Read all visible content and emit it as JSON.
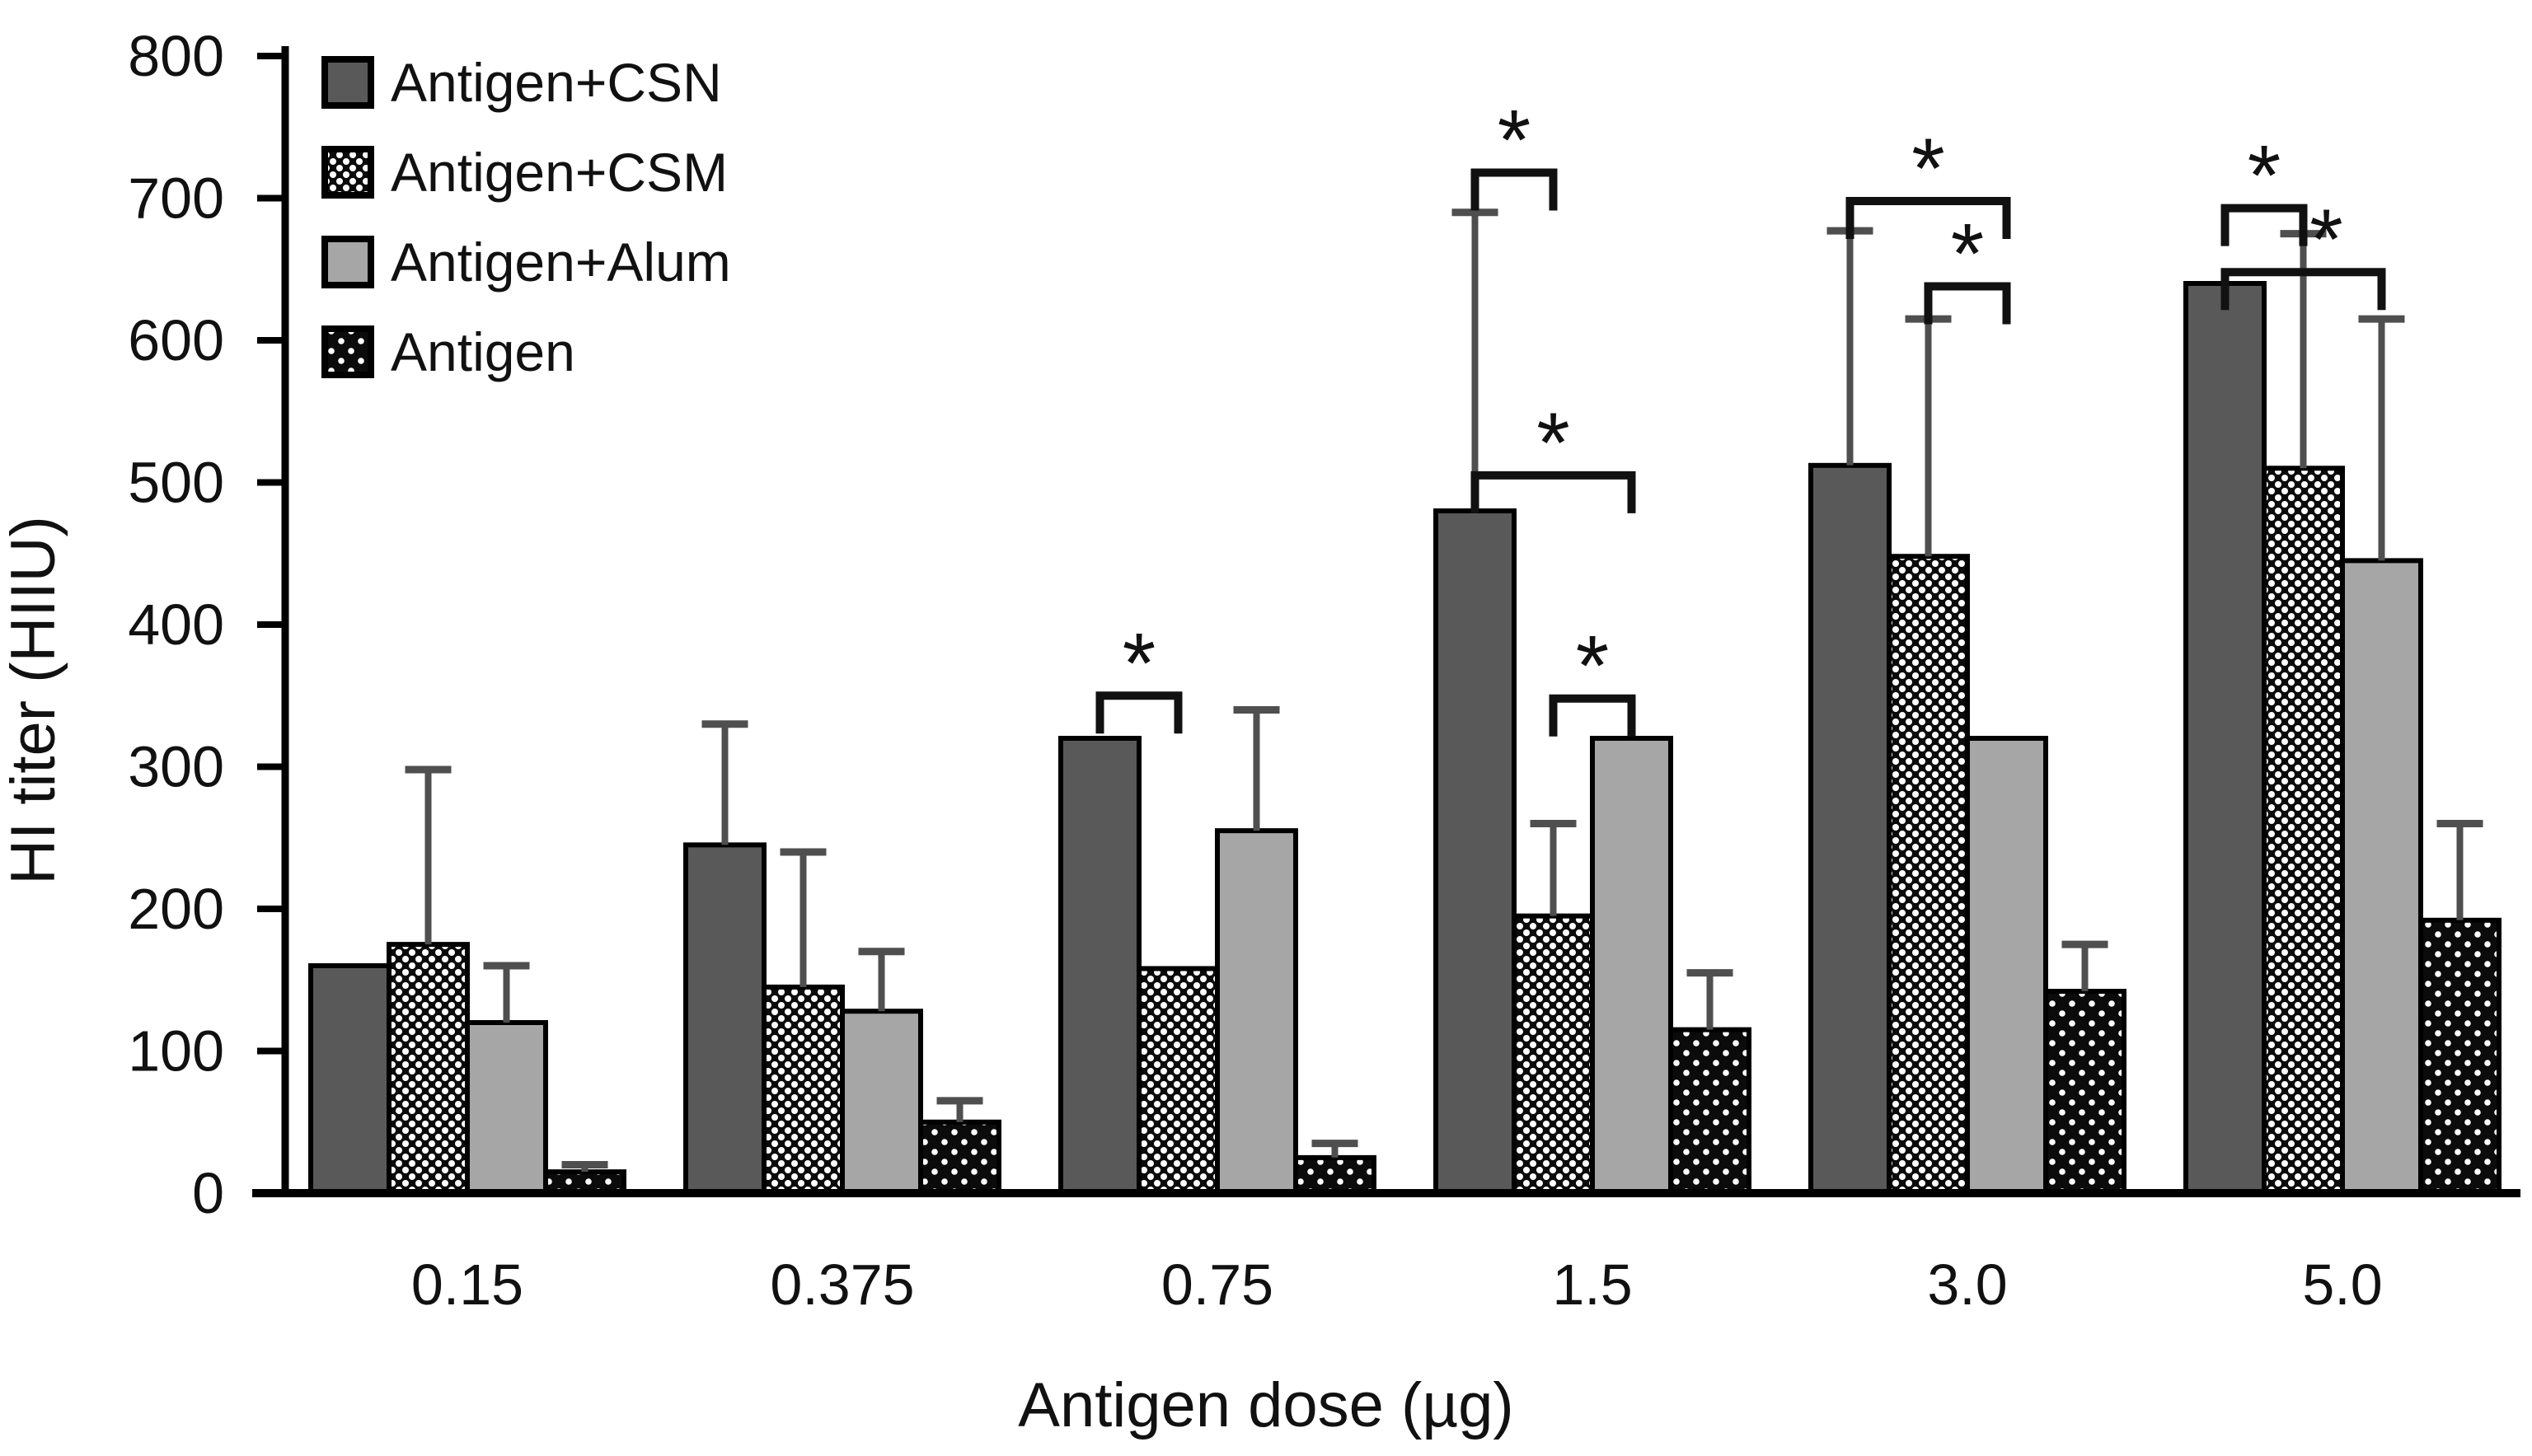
{
  "chart_data": {
    "type": "bar",
    "title": "",
    "xlabel": "Antigen dose (µg)",
    "ylabel": "HI titer (HIIU)",
    "categories": [
      "0.15",
      "0.375",
      "0.75",
      "1.5",
      "3.0",
      "5.0"
    ],
    "yticks": [
      0,
      100,
      200,
      300,
      400,
      500,
      600,
      700,
      800
    ],
    "ylim": [
      0,
      800
    ],
    "grid": false,
    "legend_position": "upper-left-inside",
    "series": [
      {
        "name": "Antigen+CSN",
        "style": "solid-dark",
        "color": "#595959",
        "values": [
          160,
          245,
          320,
          480,
          512,
          640
        ],
        "err_up": [
          0,
          85,
          0,
          210,
          165,
          0
        ]
      },
      {
        "name": "Antigen+CSM",
        "style": "dense-white-dots-on-black",
        "color": "#000000",
        "values": [
          175,
          145,
          158,
          195,
          448,
          510
        ],
        "err_up": [
          123,
          95,
          0,
          65,
          167,
          165
        ]
      },
      {
        "name": "Antigen+Alum",
        "style": "solid-light",
        "color": "#a6a6a6",
        "values": [
          120,
          128,
          255,
          320,
          320,
          445
        ],
        "err_up": [
          40,
          42,
          85,
          0,
          0,
          170
        ]
      },
      {
        "name": "Antigen",
        "style": "sparse-white-dots-on-black",
        "color": "#000000",
        "values": [
          15,
          50,
          25,
          115,
          142,
          192
        ],
        "err_up": [
          5,
          15,
          10,
          40,
          33,
          68
        ]
      }
    ],
    "significance": [
      {
        "group": 2,
        "a": 0,
        "b": 1,
        "y": 350,
        "label": "*"
      },
      {
        "group": 3,
        "a": 0,
        "b": 1,
        "y": 718,
        "label": "*"
      },
      {
        "group": 3,
        "a": 0,
        "b": 2,
        "y": 505,
        "label": "*"
      },
      {
        "group": 3,
        "a": 1,
        "b": 2,
        "y": 348,
        "label": "*"
      },
      {
        "group": 4,
        "a": 0,
        "b": 2,
        "y": 698,
        "label": "*"
      },
      {
        "group": 4,
        "a": 1,
        "b": 2,
        "y": 638,
        "label": "*"
      },
      {
        "group": 5,
        "a": 0,
        "b": 1,
        "y": 693,
        "label": "*"
      },
      {
        "group": 5,
        "a": 0,
        "b": 2,
        "y": 648,
        "label": "*",
        "star_dx": 28
      }
    ],
    "colors": {
      "axis": "#000000",
      "whisker": "#4f4f4f",
      "bracket": "#111111",
      "bar_border": "#000000"
    }
  }
}
